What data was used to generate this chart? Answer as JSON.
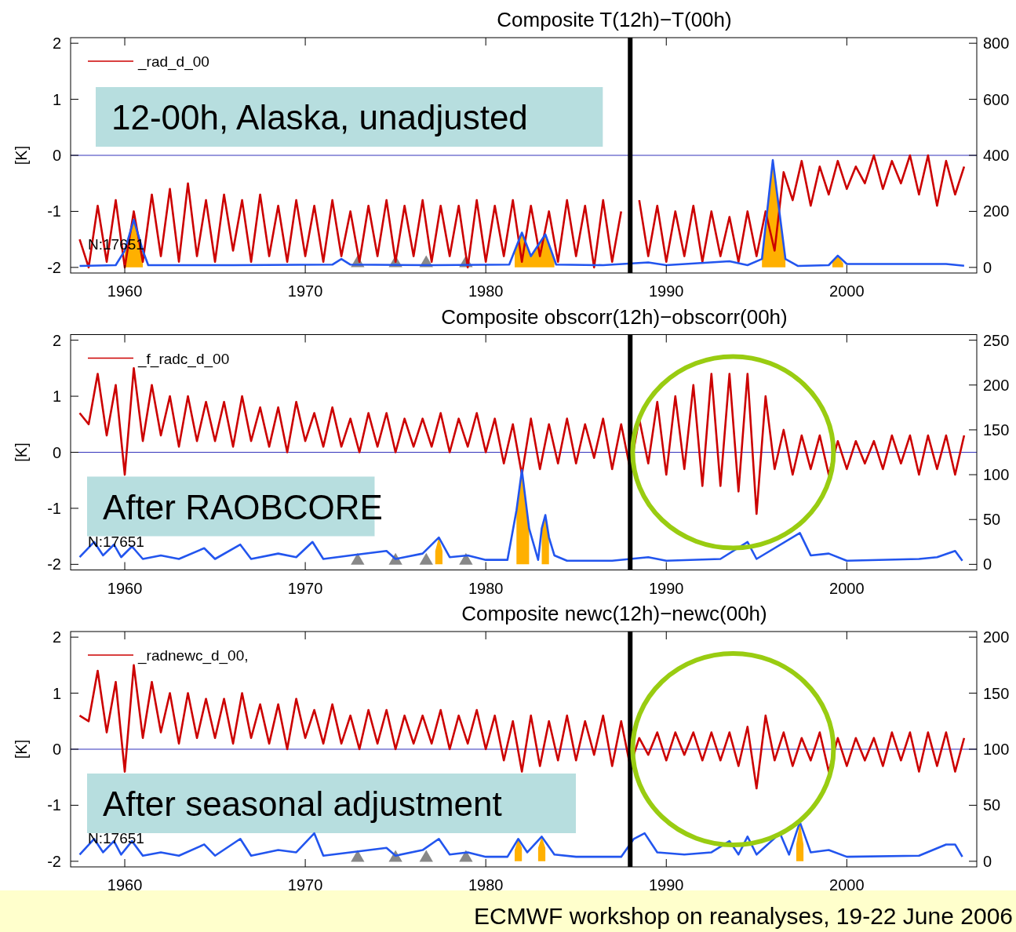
{
  "chart_data": [
    {
      "type": "line",
      "title": "Composite T(12h)−T(00h)",
      "ylabel": "[K]",
      "xlim": [
        1957,
        2007.2
      ],
      "xticks": [
        1960,
        1970,
        1980,
        1990,
        2000
      ],
      "ylim": [
        -2.1,
        2.1
      ],
      "yticks": [
        -2,
        -1,
        0,
        1,
        2
      ],
      "y2lim": [
        -20,
        820
      ],
      "y2ticks": [
        0,
        200,
        400,
        600,
        800
      ],
      "legend": "top left",
      "x": [
        1957.5,
        1958,
        1958.5,
        1959,
        1959.5,
        1960,
        1960.5,
        1961,
        1961.5,
        1962,
        1962.5,
        1963,
        1963.5,
        1964,
        1964.5,
        1965,
        1965.5,
        1966,
        1966.5,
        1967,
        1967.5,
        1968,
        1968.5,
        1969,
        1969.5,
        1970,
        1970.5,
        1971,
        1971.5,
        1972,
        1972.5,
        1973,
        1973.5,
        1974,
        1974.5,
        1975,
        1975.5,
        1976,
        1976.5,
        1977,
        1977.5,
        1978,
        1978.5,
        1979,
        1979.5,
        1980,
        1980.5,
        1981,
        1981.5,
        1982,
        1982.5,
        1983,
        1983.5,
        1984,
        1984.5,
        1985,
        1985.5,
        1986,
        1986.5,
        1987,
        1987.5,
        1988,
        1988.5,
        1989,
        1989.5,
        1990,
        1990.5,
        1991,
        1991.5,
        1992,
        1992.5,
        1993,
        1993.5,
        1994,
        1994.5,
        1995,
        1995.5,
        1996,
        1996.5,
        1997,
        1997.5,
        1998,
        1998.5,
        1999,
        1999.5,
        2000,
        2000.5,
        2001,
        2001.5,
        2002,
        2002.5,
        2003,
        2003.5,
        2004,
        2004.5,
        2005,
        2005.5,
        2006,
        2006.5
      ],
      "series": [
        {
          "name": "_rad_d_00",
          "color": "#cc0000",
          "values": [
            -1.5,
            -2.0,
            -0.9,
            -1.9,
            -0.8,
            -2.0,
            -1.0,
            -1.9,
            -0.7,
            -1.8,
            -0.6,
            -1.9,
            -0.5,
            -1.8,
            -0.8,
            -1.9,
            -0.7,
            -1.7,
            -0.8,
            -1.9,
            -0.7,
            -1.8,
            -0.9,
            -1.9,
            -0.8,
            -1.8,
            -0.9,
            -1.9,
            -0.8,
            -1.8,
            -1.0,
            -1.9,
            -0.9,
            -1.8,
            -0.8,
            -1.9,
            -0.9,
            -1.8,
            -0.8,
            -1.9,
            -0.9,
            -1.8,
            -0.9,
            -2.0,
            -0.8,
            -1.9,
            -0.9,
            -1.8,
            -0.8,
            -1.9,
            -0.9,
            -1.8,
            -1.0,
            -1.9,
            -0.8,
            -1.8,
            -0.9,
            -2.0,
            -0.8,
            -1.9,
            -1.0,
            null,
            -0.8,
            -1.8,
            -0.9,
            -1.9,
            -1.0,
            -1.8,
            -0.9,
            -1.9,
            -1.0,
            -1.8,
            -1.1,
            -1.9,
            -1.0,
            -1.8,
            -1.0,
            -1.7,
            -0.3,
            -0.8,
            -0.1,
            -0.9,
            -0.2,
            -0.7,
            -0.1,
            -0.6,
            -0.2,
            -0.5,
            0.0,
            -0.6,
            -0.1,
            -0.5,
            0.0,
            -0.7,
            0.0,
            -0.9,
            -0.1,
            -0.7,
            -0.2
          ]
        },
        {
          "type": "area",
          "axis": "y2",
          "color": "#ffb000",
          "x": [
            1960.0,
            1960.5,
            1961.0,
            1961.1,
            1981.6,
            1982.0,
            1982.5,
            1983.3,
            1983.8,
            1984,
            1995.3,
            1995.9,
            1996.6,
            1997,
            1999.2,
            1999.5,
            1999.8
          ],
          "values": [
            60,
            170,
            60,
            null,
            60,
            124,
            40,
            118,
            20,
            null,
            30,
            383,
            30,
            null,
            20,
            42,
            15
          ]
        },
        {
          "type": "line",
          "axis": "y2",
          "color": "#2255ee",
          "x": [
            1957.5,
            1959.5,
            1960.0,
            1960.5,
            1961.0,
            1961.3,
            1966,
            1971.5,
            1972.0,
            1972.5,
            1977,
            1981.3,
            1982.0,
            1982.5,
            1983.3,
            1983.9,
            1986.5,
            1989.0,
            1990,
            1993.5,
            1994.5,
            1995.3,
            1995.9,
            1996.6,
            1997.3,
            1999.0,
            1999.5,
            2000.0,
            2005.5,
            2006.5
          ],
          "values": [
            5,
            8,
            60,
            170,
            60,
            8,
            8,
            10,
            30,
            10,
            8,
            10,
            124,
            40,
            118,
            10,
            8,
            18,
            8,
            22,
            8,
            30,
            383,
            30,
            5,
            8,
            42,
            12,
            12,
            6
          ]
        },
        {
          "type": "scatter",
          "axis": "y2",
          "marker": "triangle",
          "color": "#888888",
          "x": [
            1972.9,
            1975.0,
            1976.7,
            1978.9
          ],
          "values": [
            15,
            15,
            15,
            15
          ]
        }
      ],
      "ref_lines": [
        {
          "axis": "y",
          "value": 0,
          "color": "#3333bb"
        },
        {
          "axis": "x",
          "value": 1988,
          "color": "#000000"
        }
      ],
      "annotations": [
        "12-00h, Alaska, unadjusted",
        "N:17651"
      ]
    },
    {
      "type": "line",
      "title": "Composite obscorr(12h)−obscorr(00h)",
      "ylabel": "[K]",
      "xlim": [
        1957,
        2007.2
      ],
      "xticks": [
        1960,
        1970,
        1980,
        1990,
        2000
      ],
      "ylim": [
        -2.1,
        2.1
      ],
      "yticks": [
        -2,
        -1,
        0,
        1,
        2
      ],
      "y2lim": [
        -6.25,
        256.25
      ],
      "y2ticks": [
        0,
        50,
        100,
        150,
        200,
        250
      ],
      "legend": "top left",
      "x": [
        1957.5,
        1958,
        1958.5,
        1959,
        1959.5,
        1960,
        1960.5,
        1961,
        1961.5,
        1962,
        1962.5,
        1963,
        1963.5,
        1964,
        1964.5,
        1965,
        1965.5,
        1966,
        1966.5,
        1967,
        1967.5,
        1968,
        1968.5,
        1969,
        1969.5,
        1970,
        1970.5,
        1971,
        1971.5,
        1972,
        1972.5,
        1973,
        1973.5,
        1974,
        1974.5,
        1975,
        1975.5,
        1976,
        1976.5,
        1977,
        1977.5,
        1978,
        1978.5,
        1979,
        1979.5,
        1980,
        1980.5,
        1981,
        1981.5,
        1982,
        1982.5,
        1983,
        1983.5,
        1984,
        1984.5,
        1985,
        1985.5,
        1986,
        1986.5,
        1987,
        1987.5,
        1988,
        1988.5,
        1989,
        1989.5,
        1990,
        1990.5,
        1991,
        1991.5,
        1992,
        1992.5,
        1993,
        1993.5,
        1994,
        1994.5,
        1995,
        1995.5,
        1996,
        1996.5,
        1997,
        1997.5,
        1998,
        1998.5,
        1999,
        1999.5,
        2000,
        2000.5,
        2001,
        2001.5,
        2002,
        2002.5,
        2003,
        2003.5,
        2004,
        2004.5,
        2005,
        2005.5,
        2006,
        2006.5
      ],
      "series": [
        {
          "name": "_f_radc_d_00",
          "color": "#cc0000",
          "values": [
            0.7,
            0.5,
            1.4,
            0.3,
            1.2,
            -0.4,
            1.5,
            0.2,
            1.2,
            0.3,
            1.0,
            0.1,
            1.0,
            0.2,
            0.9,
            0.2,
            0.9,
            0.1,
            1.0,
            0.2,
            0.8,
            0.1,
            0.8,
            0.0,
            0.9,
            0.2,
            0.7,
            0.1,
            0.8,
            0.1,
            0.6,
            0.0,
            0.7,
            0.1,
            0.7,
            0.0,
            0.6,
            0.1,
            0.6,
            0.1,
            0.7,
            0.0,
            0.6,
            0.1,
            0.7,
            0.0,
            0.6,
            -0.2,
            0.5,
            -0.4,
            0.6,
            -0.3,
            0.5,
            -0.2,
            0.6,
            -0.2,
            0.5,
            -0.1,
            0.6,
            -0.3,
            0.5,
            -0.3,
            0.6,
            -0.2,
            0.9,
            -0.4,
            1.0,
            -0.3,
            1.2,
            -0.6,
            1.4,
            -0.6,
            1.4,
            -0.7,
            1.4,
            -1.1,
            1.0,
            -0.3,
            0.4,
            -0.4,
            0.3,
            -0.3,
            0.3,
            -0.4,
            0.2,
            -0.3,
            0.2,
            -0.2,
            0.2,
            -0.3,
            0.3,
            -0.2,
            0.3,
            -0.4,
            0.3,
            -0.3,
            0.3,
            -0.4,
            0.3
          ]
        },
        {
          "type": "area",
          "axis": "y2",
          "color": "#ffb000",
          "x": [
            1977.2,
            1977.4,
            1977.6,
            1978,
            1981.7,
            1982.0,
            1982.4,
            1982.8,
            1983.1,
            1983.3,
            1983.5
          ],
          "values": [
            15,
            30,
            15,
            null,
            60,
            105,
            40,
            null,
            40,
            55,
            30
          ]
        },
        {
          "type": "line",
          "axis": "y2",
          "color": "#2255ee",
          "x": [
            1957.5,
            1958.3,
            1958.8,
            1959.4,
            1959.8,
            1960.4,
            1961,
            1962,
            1963,
            1964.4,
            1965,
            1966.4,
            1967,
            1968.5,
            1969.5,
            1970.4,
            1971,
            1972.5,
            1974.5,
            1975,
            1976.5,
            1977.4,
            1978,
            1979,
            1980,
            1981.2,
            1981.7,
            1982.0,
            1982.4,
            1982.9,
            1983.1,
            1983.3,
            1983.5,
            1983.8,
            1984.5,
            1987,
            1989,
            1990,
            1993,
            1994.5,
            1995,
            1997.4,
            1998,
            1999,
            2000,
            2004,
            2005,
            2006,
            2006.4
          ],
          "values": [
            8,
            25,
            10,
            22,
            8,
            20,
            6,
            10,
            6,
            18,
            6,
            22,
            6,
            12,
            8,
            25,
            6,
            10,
            15,
            6,
            12,
            30,
            8,
            10,
            5,
            5,
            60,
            105,
            40,
            5,
            40,
            55,
            30,
            10,
            4,
            4,
            8,
            4,
            6,
            25,
            6,
            35,
            10,
            12,
            4,
            6,
            8,
            15,
            4
          ]
        },
        {
          "type": "scatter",
          "axis": "y2",
          "marker": "triangle",
          "color": "#888888",
          "x": [
            1972.9,
            1975.0,
            1976.7,
            1978.9
          ],
          "values": [
            4,
            4,
            4,
            4
          ]
        }
      ],
      "ref_lines": [
        {
          "axis": "y",
          "value": 0,
          "color": "#3333bb"
        },
        {
          "axis": "x",
          "value": 1988,
          "color": "#000000"
        }
      ],
      "annotations": [
        "After RAOBCORE",
        "N:17651"
      ]
    },
    {
      "type": "line",
      "title": "Composite newc(12h)−newc(00h)",
      "ylabel": "[K]",
      "xlim": [
        1957,
        2007.2
      ],
      "xticks": [
        1960,
        1970,
        1980,
        1990,
        2000
      ],
      "ylim": [
        -2.1,
        2.1
      ],
      "yticks": [
        -2,
        -1,
        0,
        1,
        2
      ],
      "y2lim": [
        -5,
        205
      ],
      "y2ticks": [
        0,
        50,
        100,
        150,
        200
      ],
      "legend": "top left",
      "x": [
        1957.5,
        1958,
        1958.5,
        1959,
        1959.5,
        1960,
        1960.5,
        1961,
        1961.5,
        1962,
        1962.5,
        1963,
        1963.5,
        1964,
        1964.5,
        1965,
        1965.5,
        1966,
        1966.5,
        1967,
        1967.5,
        1968,
        1968.5,
        1969,
        1969.5,
        1970,
        1970.5,
        1971,
        1971.5,
        1972,
        1972.5,
        1973,
        1973.5,
        1974,
        1974.5,
        1975,
        1975.5,
        1976,
        1976.5,
        1977,
        1977.5,
        1978,
        1978.5,
        1979,
        1979.5,
        1980,
        1980.5,
        1981,
        1981.5,
        1982,
        1982.5,
        1983,
        1983.5,
        1984,
        1984.5,
        1985,
        1985.5,
        1986,
        1986.5,
        1987,
        1987.5,
        1988,
        1988.5,
        1989,
        1989.5,
        1990,
        1990.5,
        1991,
        1991.5,
        1992,
        1992.5,
        1993,
        1993.5,
        1994,
        1994.5,
        1995,
        1995.5,
        1996,
        1996.5,
        1997,
        1997.5,
        1998,
        1998.5,
        1999,
        1999.5,
        2000,
        2000.5,
        2001,
        2001.5,
        2002,
        2002.5,
        2003,
        2003.5,
        2004,
        2004.5,
        2005,
        2005.5,
        2006,
        2006.5
      ],
      "series": [
        {
          "name": "_radnewc_d_00,",
          "color": "#cc0000",
          "values": [
            0.6,
            0.5,
            1.4,
            0.3,
            1.2,
            -0.4,
            1.5,
            0.2,
            1.2,
            0.3,
            1.0,
            0.1,
            1.0,
            0.2,
            0.9,
            0.2,
            0.9,
            0.1,
            1.0,
            0.2,
            0.8,
            0.1,
            0.8,
            0.0,
            0.9,
            0.2,
            0.7,
            0.1,
            0.8,
            0.1,
            0.6,
            0.0,
            0.7,
            0.1,
            0.7,
            0.0,
            0.6,
            0.1,
            0.6,
            0.1,
            0.7,
            0.0,
            0.6,
            0.1,
            0.7,
            0.0,
            0.6,
            -0.2,
            0.5,
            -0.4,
            0.6,
            -0.3,
            0.5,
            -0.2,
            0.6,
            -0.2,
            0.5,
            -0.1,
            0.6,
            -0.3,
            0.5,
            -0.3,
            0.2,
            -0.1,
            0.3,
            -0.2,
            0.3,
            -0.1,
            0.3,
            -0.2,
            0.3,
            -0.2,
            0.3,
            -0.3,
            0.4,
            -0.7,
            0.6,
            -0.2,
            0.3,
            -0.3,
            0.2,
            -0.2,
            0.3,
            -0.4,
            0.2,
            -0.3,
            0.2,
            -0.2,
            0.2,
            -0.3,
            0.3,
            -0.2,
            0.3,
            -0.4,
            0.3,
            -0.3,
            0.3,
            -0.4,
            0.2
          ]
        },
        {
          "type": "area",
          "axis": "y2",
          "color": "#ffb000",
          "x": [
            1981.6,
            1981.8,
            1982.0,
            1982.5,
            1982.9,
            1983.1,
            1983.3,
            1983.6,
            1997.2,
            1997.4,
            1997.6
          ],
          "values": [
            10,
            20,
            12,
            null,
            12,
            22,
            12,
            null,
            15,
            35,
            15
          ]
        },
        {
          "type": "line",
          "axis": "y2",
          "color": "#2255ee",
          "x": [
            1957.5,
            1958.3,
            1958.8,
            1959.4,
            1959.8,
            1960.4,
            1961,
            1962,
            1963,
            1964.4,
            1965,
            1966.4,
            1967,
            1968.5,
            1969.5,
            1970.5,
            1971,
            1972.5,
            1974.5,
            1975,
            1976.5,
            1977.4,
            1978,
            1979,
            1980,
            1981.2,
            1981.8,
            1982.3,
            1983.1,
            1983.8,
            1985,
            1987.5,
            1988.2,
            1988.8,
            1989.5,
            1991,
            1992.5,
            1993.5,
            1994,
            1994.5,
            1995,
            1996.3,
            1996.8,
            1997.4,
            1998,
            1999,
            2000,
            2004,
            2005.5,
            2006,
            2006.4
          ],
          "values": [
            6,
            20,
            8,
            18,
            6,
            18,
            5,
            8,
            5,
            15,
            5,
            20,
            5,
            10,
            8,
            25,
            5,
            8,
            12,
            5,
            10,
            20,
            6,
            8,
            4,
            4,
            20,
            8,
            22,
            6,
            4,
            4,
            20,
            25,
            8,
            6,
            8,
            18,
            6,
            22,
            6,
            25,
            6,
            35,
            8,
            10,
            4,
            5,
            15,
            15,
            4
          ]
        },
        {
          "type": "scatter",
          "axis": "y2",
          "marker": "triangle",
          "color": "#888888",
          "x": [
            1972.9,
            1975.0,
            1976.7,
            1978.9
          ],
          "values": [
            3,
            3,
            3,
            3
          ]
        }
      ],
      "ref_lines": [
        {
          "axis": "y",
          "value": 0,
          "color": "#3333bb"
        },
        {
          "axis": "x",
          "value": 1988,
          "color": "#000000"
        }
      ],
      "annotations": [
        "After seasonal adjustment",
        "N:17651",
        "ECMWF workshop on reanalyses, 19-22 June 2006"
      ]
    }
  ]
}
